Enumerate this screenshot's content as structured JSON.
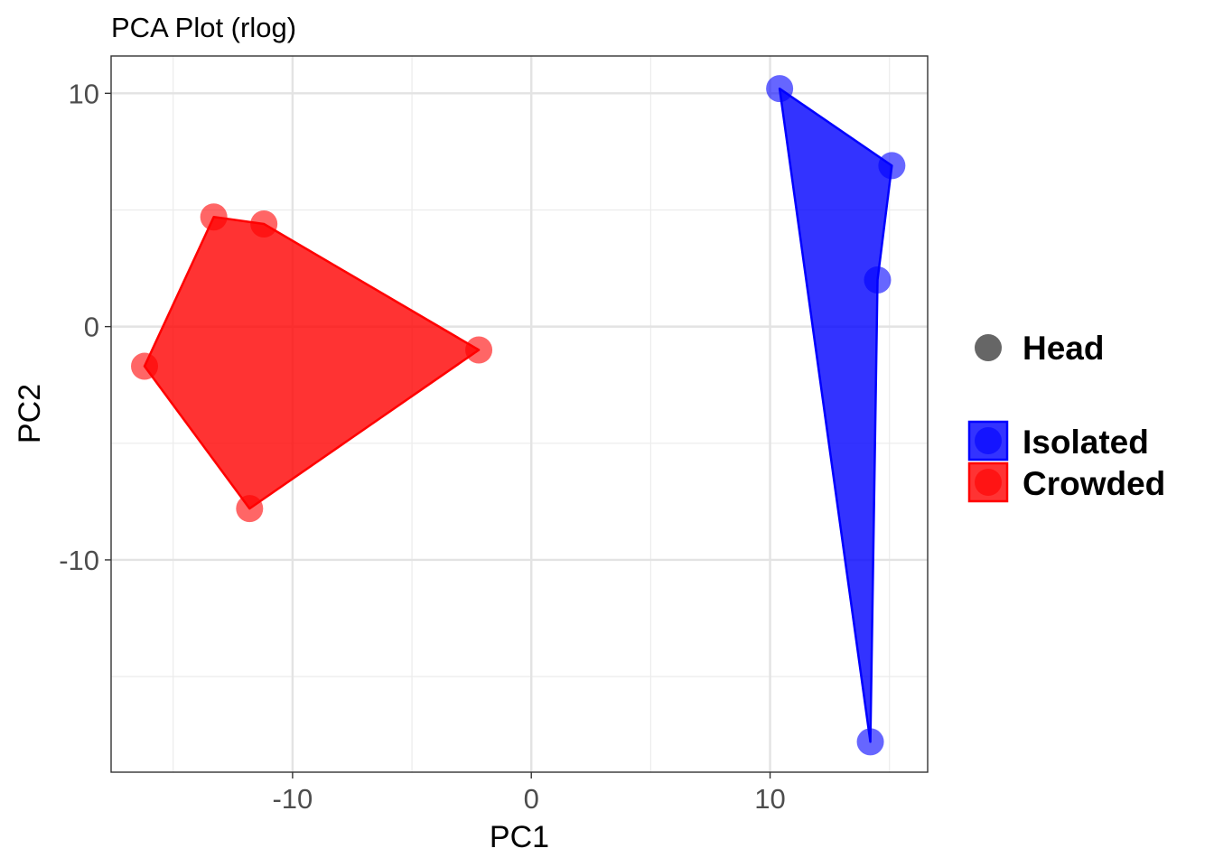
{
  "chart_data": {
    "type": "scatter",
    "title": "PCA Plot (rlog)",
    "xlabel": "PC1",
    "ylabel": "PC2",
    "xlim": [
      -17.6,
      16.6
    ],
    "ylim": [
      -19.1,
      11.6
    ],
    "x_ticks": [
      -10,
      0,
      10
    ],
    "x_tick_labels": [
      "-10",
      "0",
      "10"
    ],
    "x_minor_ticks": [
      -15,
      -5,
      5,
      15
    ],
    "y_ticks": [
      -10,
      0,
      10
    ],
    "y_tick_labels": [
      "-10",
      "0",
      "10"
    ],
    "y_minor_ticks": [
      -15,
      -5,
      5
    ],
    "grid": true,
    "legend_position": "right",
    "shape_legend": {
      "label": "Head",
      "color": "#666666"
    },
    "series": [
      {
        "name": "Isolated",
        "color": "#0000FF",
        "points": [
          {
            "x": 10.4,
            "y": 10.2
          },
          {
            "x": 15.1,
            "y": 6.9
          },
          {
            "x": 14.5,
            "y": 2.0
          },
          {
            "x": 14.2,
            "y": -17.8
          }
        ],
        "hull": [
          0,
          1,
          2,
          3
        ]
      },
      {
        "name": "Crowded",
        "color": "#FF0000",
        "points": [
          {
            "x": -13.3,
            "y": 4.7
          },
          {
            "x": -11.2,
            "y": 4.4
          },
          {
            "x": -2.2,
            "y": -1.0
          },
          {
            "x": -11.8,
            "y": -7.8
          },
          {
            "x": -16.2,
            "y": -1.7
          }
        ],
        "hull": [
          0,
          1,
          2,
          3,
          4
        ]
      }
    ]
  }
}
